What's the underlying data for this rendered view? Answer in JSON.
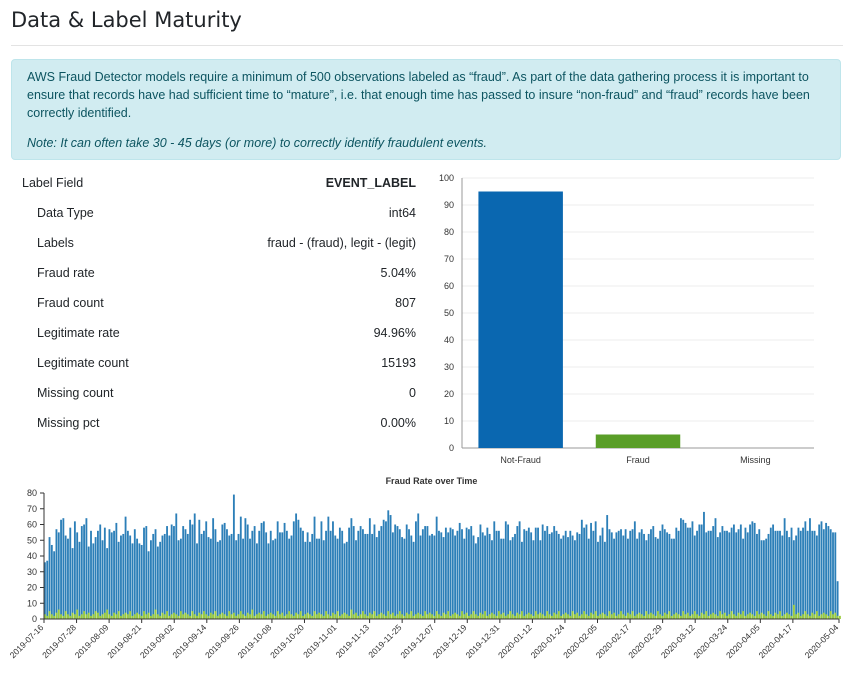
{
  "page": {
    "title": "Data & Label Maturity"
  },
  "alert": {
    "message": "AWS Fraud Detector models require a minimum of 500 observations labeled as “fraud”. As part of the data gathering process it is important to ensure that records have had sufficient time to “mature”, i.e. that enough time has passed to insure “non-fraud” and “fraud” records have been correctly identified.",
    "note": "Note: It can often take 30 - 45 days (or more) to correctly identify fraudulent events."
  },
  "stats": {
    "header": {
      "label": "Label Field",
      "value": "EVENT_LABEL"
    },
    "rows": [
      {
        "label": "Data Type",
        "value": "int64"
      },
      {
        "label": "Labels",
        "value": "fraud - (fraud), legit - (legit)"
      },
      {
        "label": "Fraud rate",
        "value": "5.04%"
      },
      {
        "label": "Fraud count",
        "value": "807"
      },
      {
        "label": "Legitimate rate",
        "value": "94.96%"
      },
      {
        "label": "Legitimate count",
        "value": "15193"
      },
      {
        "label": "Missing count",
        "value": "0"
      },
      {
        "label": "Missing pct",
        "value": "0.00%"
      }
    ]
  },
  "colors": {
    "blue": "#0a67b0",
    "green": "#5a9e28",
    "ts_blue": "#2c7fb8",
    "ts_green": "#9ccc3c"
  },
  "chart_data": [
    {
      "type": "bar",
      "categories": [
        "Not-Fraud",
        "Fraud",
        "Missing"
      ],
      "values": [
        95,
        5,
        0
      ],
      "ylim": [
        0,
        100
      ],
      "yticks": [
        0,
        10,
        20,
        30,
        40,
        50,
        60,
        70,
        80,
        90,
        100
      ],
      "grid": true,
      "colors": [
        "#0a67b0",
        "#5a9e28",
        "#0a67b0"
      ]
    },
    {
      "type": "bar",
      "title": "Fraud Rate over Time",
      "ylim": [
        0,
        80
      ],
      "yticks": [
        0,
        10,
        20,
        30,
        40,
        50,
        60,
        70,
        80
      ],
      "xticks": [
        "2019-07-16",
        "2019-07-28",
        "2019-08-09",
        "2019-08-21",
        "2019-09-02",
        "2019-09-14",
        "2019-09-26",
        "2019-10-08",
        "2019-10-20",
        "2019-11-01",
        "2019-11-13",
        "2019-11-25",
        "2019-12-07",
        "2019-12-19",
        "2019-12-31",
        "2020-01-12",
        "2020-01-24",
        "2020-02-05",
        "2020-02-17",
        "2020-02-29",
        "2020-03-12",
        "2020-03-24",
        "2020-04-05",
        "2020-04-17",
        "2020-05-04"
      ],
      "x_start": "2019-07-16",
      "x_end": "2020-05-04",
      "series": [
        {
          "values": [
            36,
            37,
            52,
            47,
            43,
            57,
            55,
            63,
            64,
            53,
            51,
            58,
            45,
            62,
            55,
            49,
            59,
            60,
            64,
            46,
            56,
            48,
            52,
            56,
            60,
            50,
            58,
            45,
            57,
            55,
            56,
            61,
            49,
            53,
            54,
            65,
            56,
            53,
            48,
            57,
            51,
            48,
            47,
            58,
            59,
            43,
            50,
            54,
            57,
            46,
            49,
            53,
            54,
            59,
            53,
            60,
            59,
            67,
            50,
            51,
            59,
            57,
            54,
            63,
            60,
            67,
            48,
            63,
            54,
            56,
            62,
            52,
            51,
            64,
            57,
            49,
            50,
            60,
            61,
            57,
            53,
            54,
            79,
            50,
            54,
            65,
            51,
            64,
            60,
            51,
            56,
            59,
            48,
            56,
            61,
            62,
            55,
            48,
            56,
            50,
            51,
            62,
            55,
            55,
            61,
            56,
            51,
            53,
            62,
            67,
            63,
            58,
            56,
            49,
            55,
            49,
            54,
            65,
            51,
            51,
            62,
            50,
            56,
            65,
            56,
            62,
            53,
            51,
            58,
            56,
            48,
            49,
            58,
            64,
            59,
            50,
            56,
            59,
            57,
            54,
            54,
            64,
            54,
            60,
            52,
            56,
            59,
            63,
            62,
            69,
            66,
            55,
            60,
            59,
            57,
            52,
            51,
            60,
            57,
            53,
            49,
            62,
            67,
            53,
            57,
            59,
            59,
            53,
            54,
            53,
            65,
            56,
            55,
            52,
            58,
            55,
            58,
            57,
            53,
            56,
            61,
            57,
            51,
            58,
            57,
            59,
            53,
            48,
            52,
            60,
            55,
            53,
            58,
            54,
            50,
            62,
            56,
            56,
            51,
            51,
            62,
            60,
            50,
            52,
            54,
            59,
            62,
            49,
            57,
            56,
            58,
            55,
            50,
            58,
            58,
            50,
            60,
            56,
            59,
            54,
            55,
            59,
            56,
            54,
            51,
            53,
            56,
            52,
            56,
            53,
            50,
            55,
            54,
            63,
            58,
            60,
            51,
            61,
            56,
            62,
            49,
            53,
            58,
            49,
            66,
            57,
            55,
            51,
            55,
            56,
            57,
            53,
            57,
            51,
            56,
            57,
            62,
            51,
            55,
            57,
            54,
            50,
            54,
            57,
            59,
            52,
            51,
            56,
            60,
            57,
            55,
            54,
            51,
            51,
            58,
            56,
            64,
            63,
            61,
            58,
            58,
            62,
            53,
            56,
            60,
            60,
            68,
            55,
            56,
            56,
            59,
            64,
            52,
            55,
            59,
            56,
            56,
            55,
            58,
            60,
            55,
            57,
            60,
            51,
            58,
            55,
            60,
            62,
            61,
            54,
            57,
            50,
            50,
            51,
            54,
            58,
            60,
            56,
            56,
            56,
            53,
            64,
            56,
            52,
            58,
            50,
            53,
            58,
            56,
            58,
            62,
            56,
            64,
            56,
            56,
            53,
            60,
            62,
            57,
            61,
            59,
            57,
            55,
            55,
            24
          ]
        },
        {
          "values": [
            3,
            2,
            5,
            3,
            2,
            4,
            6,
            3,
            2,
            5,
            3,
            2,
            4,
            3,
            6,
            2,
            3,
            5,
            3,
            4,
            2,
            3,
            5,
            4,
            2,
            3,
            4,
            6,
            3,
            2,
            4,
            3,
            5,
            2,
            3,
            4,
            3,
            5,
            2,
            3,
            4,
            3,
            2,
            5,
            3,
            4,
            2,
            3,
            6,
            3,
            2,
            4,
            3,
            5,
            2,
            3,
            4,
            3,
            2,
            5,
            3,
            4,
            3,
            2,
            5,
            3,
            2,
            4,
            3,
            5,
            3,
            2,
            4,
            3,
            5,
            2,
            3,
            4,
            3,
            2,
            5,
            3,
            4,
            2,
            3,
            5,
            3,
            2,
            4,
            3,
            6,
            2,
            3,
            4,
            3,
            5,
            2,
            3,
            4,
            3,
            2,
            5,
            3,
            4,
            2,
            3,
            5,
            3,
            2,
            4,
            3,
            5,
            2,
            3,
            4,
            3,
            2,
            5,
            3,
            4,
            3,
            2,
            5,
            3,
            2,
            4,
            3,
            5,
            2,
            3,
            4,
            3,
            2,
            6,
            3,
            4,
            2,
            3,
            5,
            3,
            2,
            4,
            3,
            5,
            2,
            3,
            4,
            3,
            2,
            5,
            3,
            4,
            2,
            3,
            5,
            3,
            2,
            4,
            3,
            5,
            2,
            3,
            4,
            3,
            2,
            5,
            3,
            4,
            3,
            2,
            5,
            3,
            2,
            4,
            3,
            5,
            2,
            3,
            4,
            3,
            2,
            5,
            3,
            4,
            2,
            3,
            5,
            3,
            2,
            4,
            3,
            5,
            2,
            3,
            4,
            3,
            2,
            5,
            3,
            4,
            2,
            3,
            5,
            3,
            2,
            4,
            3,
            5,
            2,
            3,
            4,
            3,
            2,
            5,
            3,
            4,
            3,
            2,
            5,
            3,
            2,
            4,
            3,
            5,
            2,
            3,
            4,
            3,
            2,
            5,
            3,
            4,
            2,
            3,
            5,
            3,
            2,
            4,
            3,
            5,
            2,
            3,
            4,
            3,
            2,
            5,
            3,
            4,
            2,
            3,
            5,
            3,
            2,
            4,
            3,
            5,
            2,
            3,
            4,
            3,
            2,
            5,
            3,
            4,
            3,
            2,
            5,
            3,
            2,
            4,
            3,
            5,
            2,
            3,
            4,
            3,
            2,
            5,
            3,
            4,
            2,
            3,
            5,
            3,
            2,
            4,
            3,
            5,
            2,
            3,
            4,
            3,
            2,
            5,
            3,
            4,
            2,
            3,
            5,
            3,
            2,
            4,
            3,
            5,
            2,
            3,
            4,
            3,
            2,
            5,
            3,
            4,
            3,
            2,
            5,
            3,
            2,
            4,
            3,
            5,
            2,
            3,
            4,
            3,
            2,
            9,
            3,
            4,
            2,
            3,
            5,
            3,
            2,
            4,
            3,
            5,
            2,
            3,
            4,
            3,
            2,
            5,
            3,
            4,
            2,
            2
          ]
        }
      ]
    }
  ]
}
